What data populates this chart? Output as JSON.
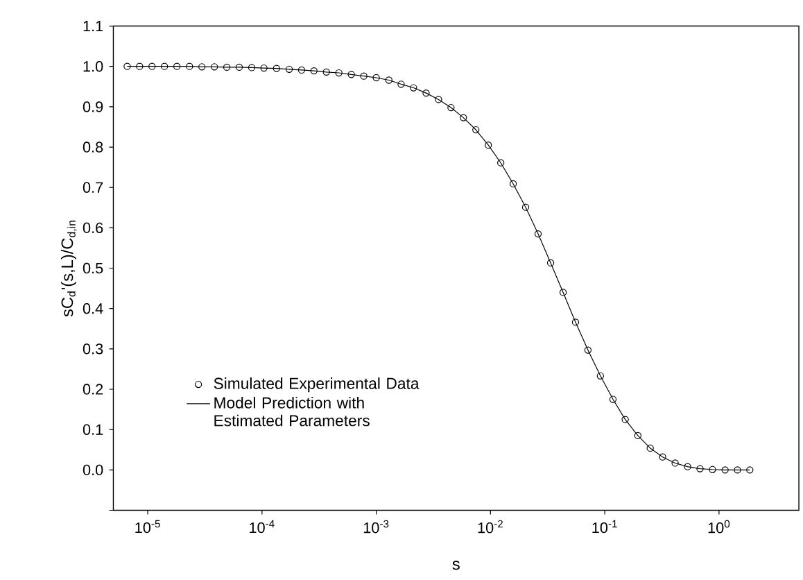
{
  "chart_data": {
    "type": "scatter",
    "xlabel": "s",
    "ylabel": "sC$_{d}$'(s,L)/C$_{d,in}$",
    "log": "x",
    "legend": "left",
    "xlim": [
      5e-06,
      5
    ],
    "ylim": [
      -0.1,
      1.1
    ],
    "xticks": [
      {
        "value": 1e-05,
        "label": "10$^{-5}$"
      },
      {
        "value": 0.0001,
        "label": "10$^{-4}$"
      },
      {
        "value": 0.001,
        "label": "10$^{-3}$"
      },
      {
        "value": 0.01,
        "label": "10$^{-2}$"
      },
      {
        "value": 0.1,
        "label": "10$^{-1}$"
      },
      {
        "value": 1,
        "label": "10$^{0}$"
      }
    ],
    "yticks": [
      {
        "value": -0.1,
        "label": null
      },
      {
        "value": 0,
        "label": "0.0"
      },
      {
        "value": 0.1,
        "label": "0.1"
      },
      {
        "value": 0.2,
        "label": "0.2"
      },
      {
        "value": 0.3,
        "label": "0.3"
      },
      {
        "value": 0.4,
        "label": "0.4"
      },
      {
        "value": 0.5,
        "label": "0.5"
      },
      {
        "value": 0.6,
        "label": "0.6"
      },
      {
        "value": 0.7,
        "label": "0.7"
      },
      {
        "value": 0.8,
        "label": "0.8"
      },
      {
        "value": 0.9,
        "label": "0.9"
      },
      {
        "value": 1,
        "label": "1.0"
      },
      {
        "value": 1.1,
        "label": "1.1"
      }
    ],
    "x": [
      6.61e-06,
      8.49e-06,
      1.09e-05,
      1.4e-05,
      1.8e-05,
      2.32e-05,
      2.98e-05,
      3.83e-05,
      4.92e-05,
      6.32e-05,
      8.13e-05,
      0.000104,
      0.000134,
      0.000173,
      0.000222,
      0.000285,
      0.000366,
      0.000471,
      0.000605,
      0.000778,
      0.001,
      0.00129,
      0.00165,
      0.00212,
      0.00273,
      0.00351,
      0.00451,
      0.00579,
      0.00745,
      0.00957,
      0.0123,
      0.0158,
      0.0203,
      0.0261,
      0.0336,
      0.0432,
      0.0555,
      0.0713,
      0.0916,
      0.118,
      0.151,
      0.195,
      0.25,
      0.321,
      0.413,
      0.531,
      0.682,
      0.877,
      1.13,
      1.45,
      1.86
    ],
    "series": [
      {
        "name": "Simulated Experimental Data",
        "marker": "circle",
        "color": "#000000",
        "values": [
          1.0,
          1.0,
          1.0,
          1.0,
          1.0,
          1.0,
          0.999,
          0.999,
          0.998,
          0.998,
          0.997,
          0.996,
          0.995,
          0.993,
          0.991,
          0.989,
          0.986,
          0.984,
          0.98,
          0.976,
          0.972,
          0.966,
          0.956,
          0.947,
          0.934,
          0.918,
          0.898,
          0.873,
          0.843,
          0.805,
          0.761,
          0.709,
          0.651,
          0.585,
          0.513,
          0.44,
          0.366,
          0.297,
          0.233,
          0.175,
          0.125,
          0.085,
          0.054,
          0.032,
          0.017,
          0.008,
          0.003,
          0.001,
          0.0,
          0.0,
          0.0
        ]
      },
      {
        "name": "Model Prediction with Estimated Parameters",
        "type": "line",
        "color": "#000000",
        "values": [
          1.0,
          1.0,
          1.0,
          1.0,
          1.0,
          1.0,
          0.999,
          0.999,
          0.998,
          0.998,
          0.997,
          0.996,
          0.995,
          0.993,
          0.991,
          0.989,
          0.986,
          0.984,
          0.98,
          0.976,
          0.972,
          0.966,
          0.956,
          0.947,
          0.934,
          0.918,
          0.898,
          0.873,
          0.843,
          0.805,
          0.761,
          0.709,
          0.651,
          0.585,
          0.513,
          0.44,
          0.366,
          0.297,
          0.233,
          0.175,
          0.125,
          0.085,
          0.054,
          0.032,
          0.017,
          0.008,
          0.003,
          0.001,
          0.0,
          0.0,
          0.0
        ]
      }
    ]
  }
}
